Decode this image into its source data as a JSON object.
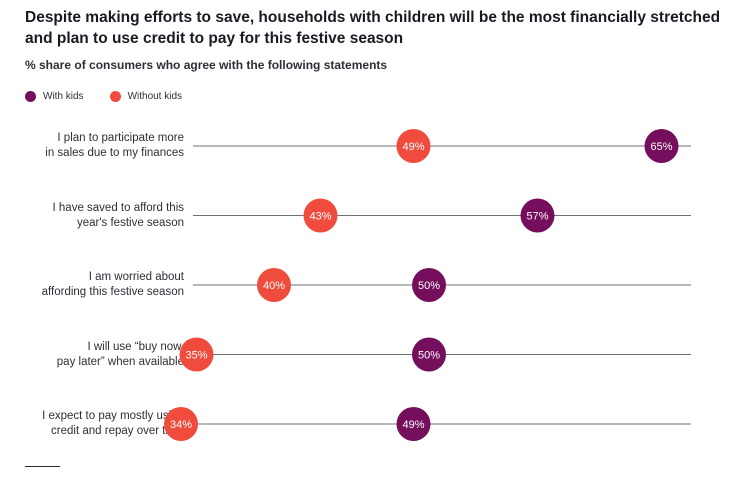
{
  "title": "Despite making efforts to save, households with children will be the most financially stretched and plan to use credit to pay for this festive season",
  "subtitle": "% share of consumers who agree with the following statements",
  "colors": {
    "with_kids": "#750E5C",
    "without_kids": "#F04C3E"
  },
  "chart_data": {
    "type": "scatter",
    "orientation": "horizontal-dot",
    "categories": [
      "I plan to participate more in sales due to my finances",
      "I have saved to afford this year's festive season",
      "I am worried about affording this festive season",
      "I will use “buy now, pay later” when available",
      "I expect to pay mostly using credit and repay over time"
    ],
    "category_lines": [
      [
        "I plan to participate more",
        "in sales due to my finances"
      ],
      [
        "I have saved to afford this",
        "year's festive season"
      ],
      [
        "I am worried about",
        "affording this festive season"
      ],
      [
        "I will use “buy now,",
        "pay later” when available"
      ],
      [
        "I expect to pay mostly using",
        "credit and repay over time"
      ]
    ],
    "series": [
      {
        "name": "With kids",
        "values": [
          65,
          57,
          50,
          50,
          49
        ],
        "labels": [
          "65%",
          "57%",
          "50%",
          "50%",
          "49%"
        ]
      },
      {
        "name": "Without kids",
        "values": [
          49,
          43,
          40,
          35,
          34
        ],
        "labels": [
          "49%",
          "43%",
          "40%",
          "35%",
          "34%"
        ]
      }
    ],
    "unit": "%",
    "grid": false,
    "legend": "top-left"
  }
}
